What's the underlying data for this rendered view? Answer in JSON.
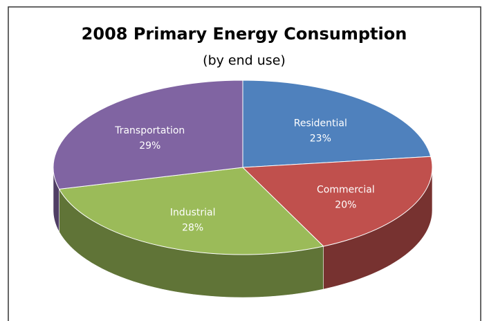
{
  "chart_data": {
    "type": "pie",
    "title": "2008 Primary Energy Consumption",
    "subtitle": "(by end use)",
    "categories": [
      "Residential",
      "Commercial",
      "Industrial",
      "Transportation"
    ],
    "values": [
      23,
      20,
      28,
      29
    ],
    "value_labels": [
      "23%",
      "20%",
      "28%",
      "29%"
    ],
    "colors": [
      "#4f81bd",
      "#c0504d",
      "#9bbb59",
      "#8064a2"
    ]
  }
}
